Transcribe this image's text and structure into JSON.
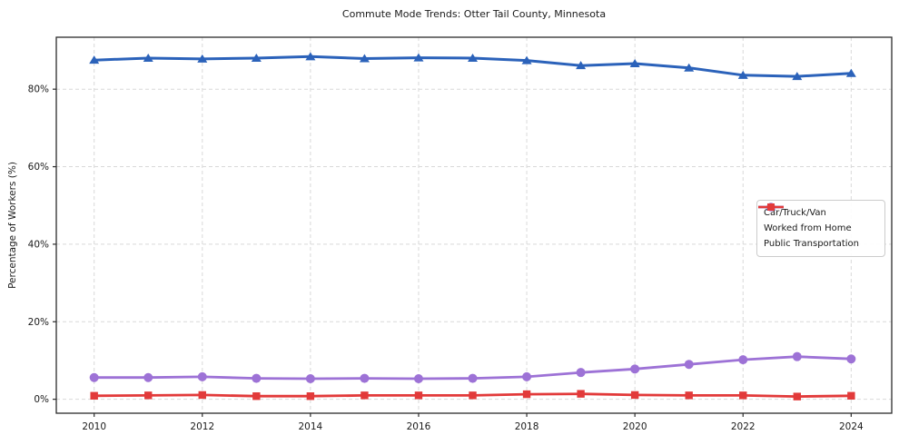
{
  "chart_data": {
    "type": "line",
    "title": "Commute Mode Trends: Otter Tail County, Minnesota",
    "xlabel": "",
    "ylabel": "Percentage of Workers (%)",
    "x": [
      2010,
      2011,
      2012,
      2013,
      2014,
      2015,
      2016,
      2017,
      2018,
      2019,
      2020,
      2021,
      2022,
      2023,
      2024
    ],
    "series": [
      {
        "name": "Car/Truck/Van",
        "color": "#2b62ba",
        "marker": "triangle",
        "line_width": 3,
        "values": [
          87.5,
          88.0,
          87.8,
          88.0,
          88.4,
          87.9,
          88.1,
          88.0,
          87.4,
          86.1,
          86.6,
          85.5,
          83.6,
          83.3,
          84.1
        ]
      },
      {
        "name": "Worked from Home",
        "color": "#9d72d6",
        "marker": "circle",
        "line_width": 2.8,
        "values": [
          5.6,
          5.6,
          5.8,
          5.4,
          5.3,
          5.4,
          5.3,
          5.4,
          5.8,
          6.9,
          7.8,
          9.0,
          10.2,
          11.0,
          10.4
        ]
      },
      {
        "name": "Public Transportation",
        "color": "#e23a3a",
        "marker": "square",
        "line_width": 2.8,
        "values": [
          0.9,
          1.0,
          1.1,
          0.8,
          0.8,
          1.0,
          1.0,
          1.0,
          1.3,
          1.4,
          1.1,
          1.0,
          1.0,
          0.7,
          0.9
        ]
      }
    ],
    "xticks": [
      2010,
      2012,
      2014,
      2016,
      2018,
      2020,
      2022,
      2024
    ],
    "yticks": [
      0,
      20,
      40,
      60,
      80
    ],
    "ytick_labels": [
      "0%",
      "20%",
      "40%",
      "60%",
      "80%"
    ],
    "xlim": [
      2009.3,
      2024.75
    ],
    "ylim": [
      -3.6,
      93.4
    ],
    "grid": true,
    "grid_style": "dashed",
    "legend_position": "center right"
  }
}
